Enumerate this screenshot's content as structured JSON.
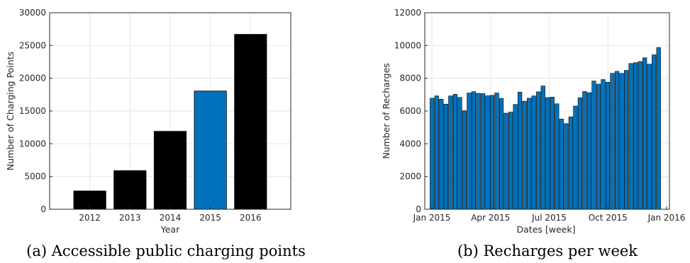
{
  "chart_data": [
    {
      "type": "bar",
      "xlabel": "Year",
      "ylabel": "Number of Charging Points",
      "categories": [
        "2012",
        "2013",
        "2014",
        "2015",
        "2016"
      ],
      "values": [
        2800,
        5900,
        11900,
        18050,
        26700
      ],
      "highlight_index": 3,
      "xlim": [
        2011,
        2017
      ],
      "ylim": [
        0,
        30000
      ],
      "yticks": [
        0,
        5000,
        10000,
        15000,
        20000,
        25000,
        30000
      ],
      "grid": true,
      "colors": {
        "bar": "#000000",
        "highlight": "#0072BD"
      },
      "caption": "(a) Accessible public charging points"
    },
    {
      "type": "bar",
      "xlabel": "Dates [week]",
      "ylabel": "Number of Recharges",
      "values": [
        6780,
        6920,
        6720,
        6420,
        6920,
        7020,
        6830,
        6020,
        7100,
        7180,
        7080,
        7060,
        6930,
        6960,
        7100,
        6770,
        5870,
        5930,
        6400,
        7150,
        6600,
        6780,
        6920,
        7170,
        7530,
        6820,
        6850,
        6440,
        5510,
        5230,
        5640,
        6300,
        6810,
        7190,
        7120,
        7830,
        7640,
        7920,
        7760,
        8300,
        8420,
        8300,
        8480,
        8900,
        8950,
        9020,
        9250,
        8860,
        9430,
        9880
      ],
      "xticks": [
        "Jan 2015",
        "Apr 2015",
        "Jul 2015",
        "Oct 2015",
        "Jan 2016"
      ],
      "ylim": [
        0,
        12000
      ],
      "yticks": [
        0,
        2000,
        4000,
        6000,
        8000,
        10000,
        12000
      ],
      "grid": true,
      "colors": {
        "bar": "#0072BD"
      },
      "caption": "(b) Recharges per week"
    }
  ]
}
